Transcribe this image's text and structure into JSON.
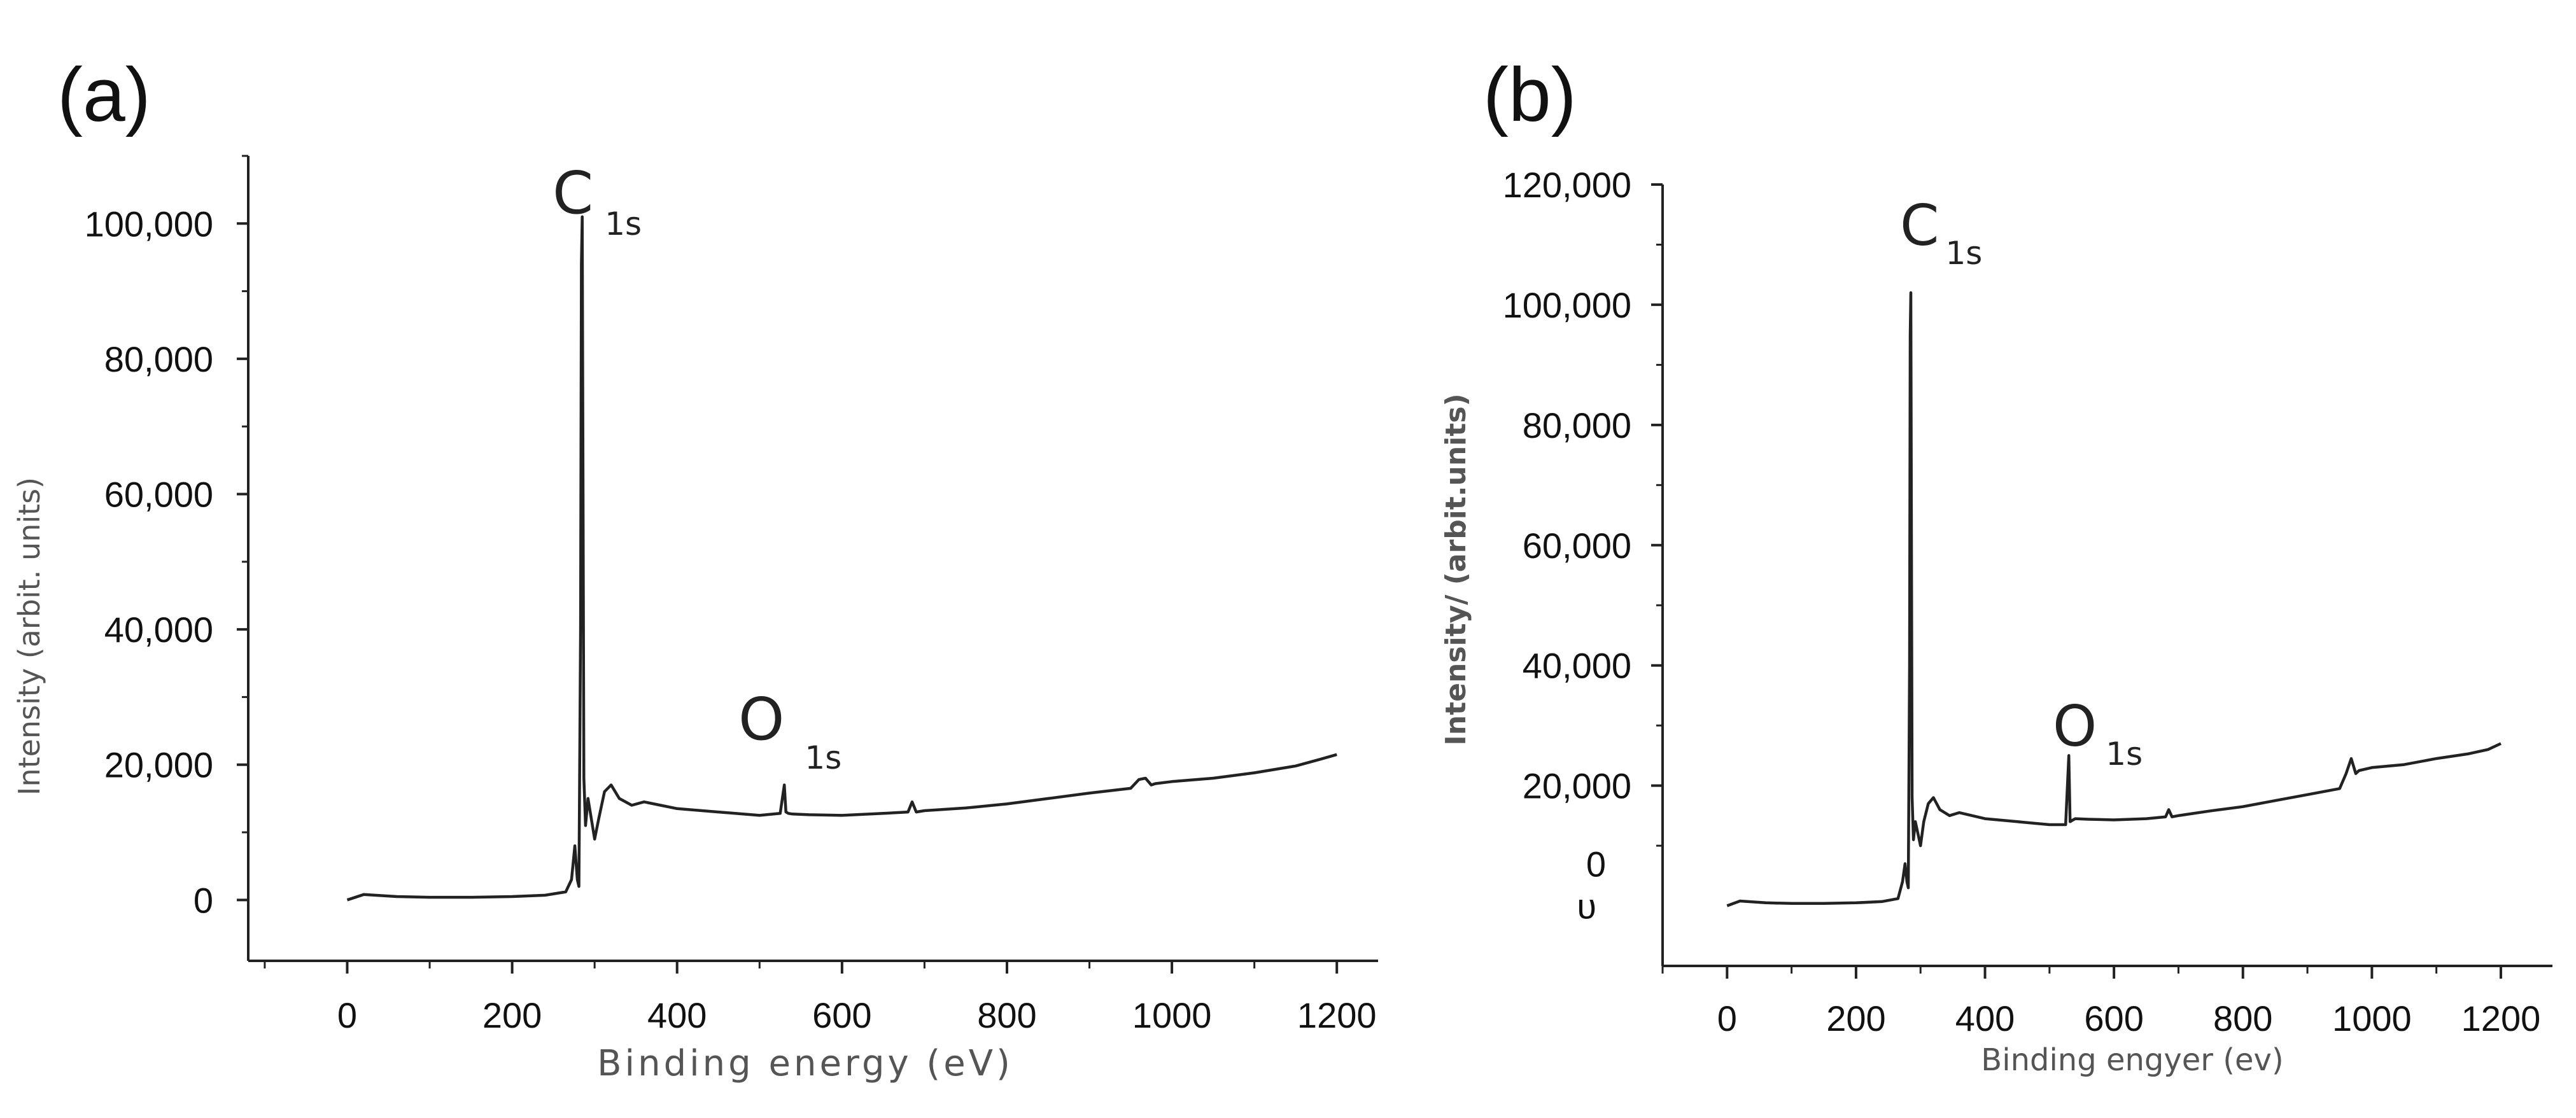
{
  "chart_data": [
    {
      "type": "line",
      "panel_label": "(a)",
      "xlabel": "Binding energy (eV)",
      "ylabel": "Intensity (arbit. units)",
      "xlim": [
        -120,
        1250
      ],
      "ylim": [
        -9000,
        110000
      ],
      "x_ticks": [
        0,
        200,
        400,
        600,
        800,
        1000,
        1200
      ],
      "x_tick_labels": [
        "0",
        "200",
        "400",
        "600",
        "800",
        "1000",
        "1200"
      ],
      "y_ticks": [
        0,
        20000,
        40000,
        60000,
        80000,
        100000
      ],
      "y_tick_labels": [
        "0",
        "20,000",
        "40,000",
        "60,000",
        "80,000",
        "100,000"
      ],
      "annotations": [
        {
          "main": "C",
          "sub": "1s",
          "x": 285,
          "y": 101000
        },
        {
          "main": "O",
          "sub": "1s",
          "x": 532,
          "y": 17000
        }
      ],
      "series": [
        {
          "x": [
            0,
            20,
            60,
            100,
            150,
            200,
            240,
            265,
            272,
            276,
            279,
            281,
            283,
            284,
            285,
            286,
            287,
            289,
            292,
            296,
            300,
            305,
            312,
            320,
            330,
            345,
            360,
            380,
            400,
            450,
            500,
            525,
            530,
            532,
            535,
            540,
            560,
            600,
            650,
            680,
            685,
            690,
            700,
            750,
            800,
            850,
            900,
            950,
            960,
            968,
            975,
            980,
            1000,
            1050,
            1100,
            1150,
            1180,
            1200
          ],
          "y": [
            0,
            800,
            500,
            400,
            400,
            500,
            700,
            1200,
            3000,
            8000,
            3000,
            2000,
            40000,
            94000,
            101000,
            60000,
            18000,
            11000,
            15000,
            12000,
            9000,
            12000,
            16000,
            17000,
            15000,
            14000,
            14500,
            14000,
            13500,
            13000,
            12500,
            12800,
            17000,
            13000,
            12800,
            12700,
            12600,
            12500,
            12800,
            13000,
            14500,
            13000,
            13200,
            13600,
            14200,
            15000,
            15800,
            16500,
            17800,
            18000,
            17000,
            17200,
            17500,
            18000,
            18800,
            19800,
            20800,
            21500
          ]
        }
      ]
    },
    {
      "type": "line",
      "panel_label": "(b)",
      "xlabel": "Binding engyer (ev)",
      "ylabel": "Intensity/ (arbit.units)",
      "xlim": [
        -100,
        1280
      ],
      "ylim": [
        -10000,
        120000
      ],
      "x_ticks": [
        0,
        200,
        400,
        600,
        800,
        1000,
        1200
      ],
      "x_tick_labels": [
        "0",
        "200",
        "400",
        "600",
        "800",
        "1000",
        "1200"
      ],
      "y_ticks": [
        20000,
        40000,
        60000,
        80000,
        100000,
        120000
      ],
      "y_tick_labels": [
        "20,000",
        "40,000",
        "60,000",
        "80,000",
        "100,000",
        "120,000"
      ],
      "extra_y_labels": [
        {
          "text": "0",
          "y": 7000
        },
        {
          "text": "υ",
          "y": 0
        }
      ],
      "annotations": [
        {
          "main": "C",
          "sub": "1s",
          "x": 285,
          "y": 115000
        },
        {
          "main": "O",
          "sub": "1s",
          "x": 532,
          "y": 26000
        }
      ],
      "series": [
        {
          "x": [
            0,
            20,
            60,
            100,
            150,
            200,
            240,
            265,
            272,
            276,
            279,
            281,
            283,
            284,
            285,
            286,
            287,
            289,
            292,
            296,
            300,
            305,
            312,
            320,
            330,
            345,
            360,
            380,
            400,
            450,
            500,
            525,
            530,
            532,
            535,
            540,
            560,
            600,
            650,
            680,
            685,
            690,
            700,
            750,
            800,
            850,
            900,
            950,
            960,
            968,
            975,
            980,
            1000,
            1050,
            1100,
            1150,
            1180,
            1200
          ],
          "y": [
            0,
            800,
            500,
            400,
            400,
            500,
            700,
            1200,
            4000,
            7000,
            4000,
            3000,
            40000,
            95000,
            102000,
            60000,
            18000,
            11000,
            14000,
            12000,
            10000,
            14000,
            17000,
            18000,
            16000,
            15000,
            15500,
            15000,
            14500,
            14000,
            13500,
            13500,
            25000,
            14000,
            14200,
            14500,
            14400,
            14300,
            14500,
            14800,
            16000,
            14800,
            15000,
            15800,
            16500,
            17500,
            18500,
            19500,
            22000,
            24500,
            22000,
            22500,
            23000,
            23500,
            24500,
            25300,
            26000,
            27000
          ]
        }
      ]
    }
  ]
}
